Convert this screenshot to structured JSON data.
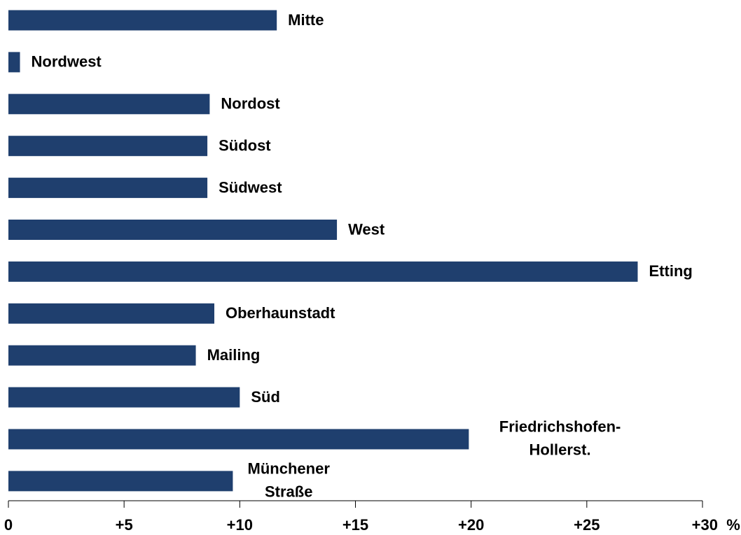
{
  "chart_data": {
    "type": "barh",
    "categories": [
      "Mitte",
      "Nordwest",
      "Nordost",
      "Südost",
      "Südwest",
      "West",
      "Etting",
      "Oberhaunstadt",
      "Mailing",
      "Süd",
      "Friedrichshofen-\nHollerst.",
      "Münchener\nStraße"
    ],
    "values": [
      11.6,
      0.5,
      8.7,
      8.6,
      8.6,
      14.2,
      27.2,
      8.9,
      8.1,
      10.0,
      19.9,
      9.7
    ],
    "color": "#1f3f6e",
    "xlim": [
      0,
      30
    ],
    "xticks": [
      0,
      {
        "value": 5,
        "label": "+5"
      },
      {
        "value": 10,
        "label": "+10"
      },
      {
        "value": 15,
        "label": "+15"
      },
      {
        "value": 20,
        "label": "+20"
      },
      {
        "value": 25,
        "label": "+25"
      },
      {
        "value": 30,
        "label": "+30"
      }
    ],
    "xlabel": "%"
  }
}
